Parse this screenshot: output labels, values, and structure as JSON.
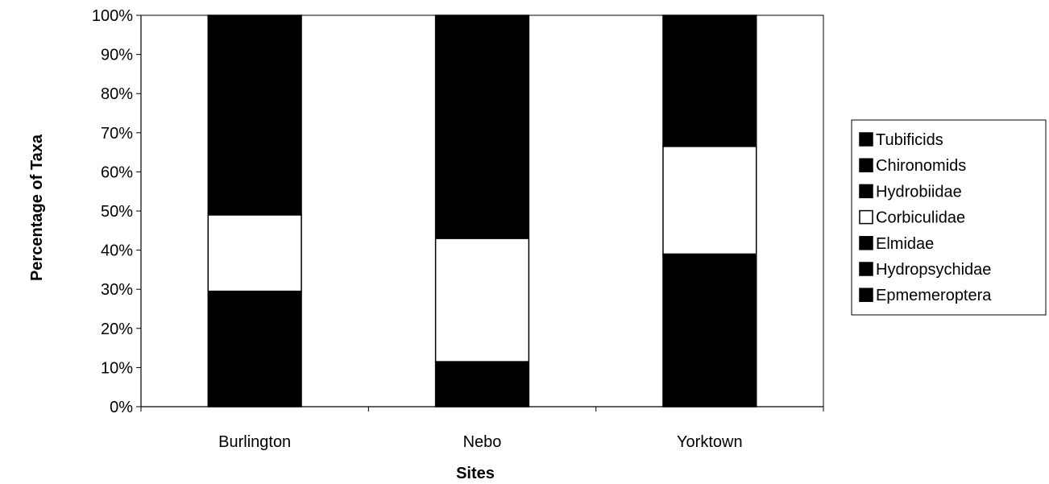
{
  "chart_data": {
    "type": "bar",
    "stacked": true,
    "percent": true,
    "title": "",
    "xlabel": "Sites",
    "ylabel": "Percentage of Taxa",
    "ylim": [
      0,
      100
    ],
    "yticks": [
      "0%",
      "10%",
      "20%",
      "30%",
      "40%",
      "50%",
      "60%",
      "70%",
      "80%",
      "90%",
      "100%"
    ],
    "categories": [
      "Burlington",
      "Nebo",
      "Yorktown"
    ],
    "series": [
      {
        "name": "Epmemeroptera",
        "color": "#000000",
        "values": [
          0,
          0,
          0
        ]
      },
      {
        "name": "Hydropsychidae",
        "color": "#000000",
        "values": [
          0,
          0,
          0
        ]
      },
      {
        "name": "Elmidae",
        "color": "#000000",
        "values": [
          29.5,
          11.5,
          39
        ]
      },
      {
        "name": "Corbiculidae",
        "color": "#ffffff",
        "values": [
          19.5,
          31.5,
          27.5
        ]
      },
      {
        "name": "Hydrobiidae",
        "color": "#000000",
        "values": [
          0,
          0,
          0
        ]
      },
      {
        "name": "Chironomids",
        "color": "#000000",
        "values": [
          51,
          57,
          33.5
        ]
      },
      {
        "name": "Tubificids",
        "color": "#000000",
        "values": [
          0,
          0,
          0
        ]
      }
    ],
    "legend": {
      "position": "right",
      "entries": [
        "Tubificids",
        "Chironomids",
        "Hydrobiidae",
        "Corbiculidae",
        "Elmidae",
        "Hydropsychidae",
        "Epmemeroptera"
      ]
    },
    "grid": false
  }
}
